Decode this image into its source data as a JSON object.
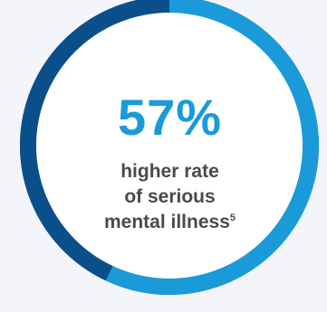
{
  "chart_data": {
    "type": "pie",
    "style": "donut",
    "value_percent": 57,
    "value_label": "57%",
    "caption_lines": [
      "higher rate",
      "of serious",
      "mental illness"
    ],
    "footnote_marker": "5",
    "segments": [
      {
        "fraction": 0.57,
        "color": "#1a9ad9"
      },
      {
        "fraction": 0.43,
        "color": "#0b4f8a"
      }
    ]
  },
  "colors": {
    "background": "#f3f5fa",
    "accent_value": "#1a9ad9",
    "caption_text": "#4a4a4a",
    "inner_fill": "#ffffff"
  }
}
